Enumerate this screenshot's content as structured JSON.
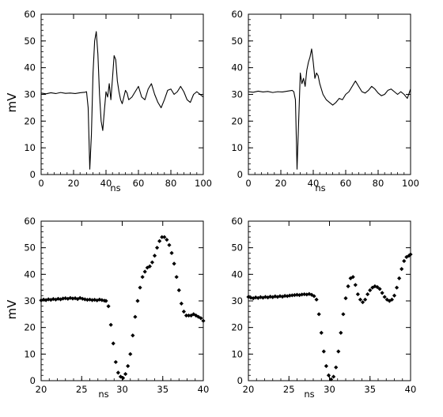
{
  "chart_data": [
    {
      "type": "line",
      "xlabel": "ns",
      "ylabel": "mV",
      "xlim": [
        0,
        100
      ],
      "ylim": [
        0,
        60
      ],
      "xticks": [
        "0",
        "20",
        "40",
        "60",
        "80",
        "100"
      ],
      "yticks": [
        "0",
        "10",
        "20",
        "30",
        "40",
        "50",
        "60"
      ],
      "grid": false,
      "series": [
        {
          "x": [
            0,
            3,
            6,
            9,
            12,
            15,
            18,
            21,
            24,
            27,
            28,
            29,
            30,
            31,
            32,
            33,
            34,
            35,
            36,
            37,
            38,
            39,
            40,
            41,
            42,
            43,
            44,
            45,
            46,
            47,
            48,
            49,
            50,
            51,
            52,
            53,
            54,
            56,
            58,
            60,
            62,
            64,
            66,
            68,
            70,
            72,
            74,
            76,
            78,
            80,
            82,
            84,
            86,
            88,
            90,
            92,
            94,
            96,
            98,
            100
          ],
          "y": [
            30.5,
            30.2,
            30.6,
            30.3,
            30.7,
            30.4,
            30.5,
            30.3,
            30.6,
            30.8,
            31.0,
            25.0,
            2.0,
            15.0,
            38.0,
            50.0,
            53.5,
            45.0,
            30.0,
            20.0,
            16.5,
            24.0,
            31.0,
            29.0,
            34.0,
            28.0,
            36.0,
            44.5,
            43.0,
            35.0,
            31.0,
            28.0,
            26.5,
            29.0,
            31.5,
            30.5,
            28.0,
            29.0,
            31.0,
            33.0,
            29.0,
            28.0,
            32.0,
            34.0,
            30.0,
            27.0,
            25.0,
            28.0,
            31.5,
            32.0,
            30.0,
            31.0,
            33.0,
            31.0,
            28.0,
            27.0,
            30.0,
            31.0,
            30.0,
            29.0
          ]
        }
      ]
    },
    {
      "type": "line",
      "xlabel": "ns",
      "ylabel": "",
      "xlim": [
        0,
        100
      ],
      "ylim": [
        0,
        60
      ],
      "xticks": [
        "0",
        "20",
        "40",
        "60",
        "80",
        "100"
      ],
      "yticks": [
        "0",
        "10",
        "20",
        "30",
        "40",
        "50",
        "60"
      ],
      "grid": false,
      "series": [
        {
          "x": [
            0,
            3,
            6,
            9,
            12,
            15,
            18,
            21,
            24,
            27,
            28,
            29,
            30,
            31,
            32,
            33,
            34,
            35,
            36,
            37,
            38,
            39,
            40,
            41,
            42,
            43,
            44,
            45,
            46,
            47,
            48,
            50,
            52,
            54,
            56,
            58,
            60,
            62,
            64,
            66,
            68,
            70,
            72,
            74,
            76,
            78,
            80,
            82,
            84,
            86,
            88,
            90,
            92,
            94,
            96,
            98,
            100
          ],
          "y": [
            31.0,
            30.8,
            31.2,
            30.9,
            31.1,
            30.7,
            31.0,
            30.9,
            31.2,
            31.5,
            31.0,
            28.0,
            2.0,
            20.0,
            38.0,
            34.0,
            36.0,
            33.0,
            39.0,
            42.0,
            44.0,
            47.0,
            42.0,
            36.0,
            38.0,
            37.0,
            34.0,
            32.0,
            30.0,
            29.0,
            28.0,
            27.0,
            26.0,
            27.0,
            28.5,
            28.0,
            30.0,
            31.0,
            33.0,
            35.0,
            33.0,
            31.0,
            30.5,
            31.5,
            33.0,
            32.0,
            30.5,
            29.5,
            30.0,
            31.5,
            32.0,
            31.0,
            30.0,
            31.0,
            30.0,
            28.5,
            32.0
          ]
        }
      ]
    },
    {
      "type": "scatter",
      "xlabel": "ns",
      "ylabel": "mV",
      "xlim": [
        20,
        40
      ],
      "ylim": [
        0,
        60
      ],
      "xticks": [
        "20",
        "25",
        "30",
        "35",
        "40"
      ],
      "yticks": [
        "0",
        "10",
        "20",
        "30",
        "40",
        "50",
        "60"
      ],
      "grid": false,
      "series": [
        {
          "x": [
            20.0,
            20.3,
            20.6,
            20.9,
            21.2,
            21.5,
            21.8,
            22.1,
            22.4,
            22.7,
            23.0,
            23.3,
            23.6,
            23.9,
            24.2,
            24.5,
            24.8,
            25.1,
            25.4,
            25.7,
            26.0,
            26.3,
            26.6,
            26.9,
            27.2,
            27.5,
            27.8,
            28.0,
            28.3,
            28.6,
            28.9,
            29.2,
            29.5,
            29.8,
            30.1,
            30.4,
            30.7,
            31.0,
            31.3,
            31.6,
            31.9,
            32.2,
            32.5,
            32.8,
            33.1,
            33.4,
            33.7,
            34.0,
            34.3,
            34.6,
            34.9,
            35.2,
            35.5,
            35.8,
            36.1,
            36.4,
            36.7,
            37.0,
            37.3,
            37.6,
            37.9,
            38.2,
            38.5,
            38.8,
            39.1,
            39.4,
            39.7,
            40.0
          ],
          "y": [
            30.2,
            30.5,
            30.3,
            30.6,
            30.4,
            30.7,
            30.5,
            30.8,
            30.6,
            30.9,
            31.0,
            30.8,
            31.1,
            30.9,
            31.0,
            30.7,
            31.1,
            30.8,
            30.6,
            30.4,
            30.5,
            30.3,
            30.4,
            30.2,
            30.5,
            30.3,
            30.1,
            30.0,
            28.0,
            21.0,
            14.0,
            7.0,
            3.0,
            1.5,
            1.0,
            2.5,
            5.5,
            10.0,
            17.0,
            24.0,
            30.0,
            35.0,
            39.0,
            41.0,
            42.5,
            43.0,
            44.5,
            47.0,
            50.0,
            52.5,
            54.0,
            54.0,
            53.0,
            51.0,
            48.0,
            44.0,
            39.0,
            34.0,
            29.0,
            26.0,
            24.5,
            24.5,
            24.5,
            25.0,
            24.5,
            24.0,
            23.5,
            22.5
          ]
        }
      ]
    },
    {
      "type": "scatter",
      "xlabel": "ns",
      "ylabel": "",
      "xlim": [
        20,
        40
      ],
      "ylim": [
        0,
        60
      ],
      "xticks": [
        "20",
        "25",
        "30",
        "35",
        "40"
      ],
      "yticks": [
        "0",
        "10",
        "20",
        "30",
        "40",
        "50",
        "60"
      ],
      "grid": false,
      "series": [
        {
          "x": [
            20.0,
            20.3,
            20.6,
            20.9,
            21.2,
            21.5,
            21.8,
            22.1,
            22.4,
            22.7,
            23.0,
            23.3,
            23.6,
            23.9,
            24.2,
            24.5,
            24.8,
            25.1,
            25.4,
            25.7,
            26.0,
            26.3,
            26.6,
            26.9,
            27.2,
            27.5,
            27.8,
            28.1,
            28.4,
            28.7,
            29.0,
            29.3,
            29.6,
            29.9,
            30.2,
            30.5,
            30.8,
            31.1,
            31.4,
            31.7,
            32.0,
            32.3,
            32.6,
            32.9,
            33.2,
            33.5,
            33.8,
            34.1,
            34.4,
            34.7,
            35.0,
            35.3,
            35.6,
            35.9,
            36.2,
            36.5,
            36.8,
            37.1,
            37.4,
            37.7,
            38.0,
            38.3,
            38.6,
            38.9,
            39.2,
            39.5,
            39.8,
            40.0
          ],
          "y": [
            31.5,
            31.2,
            31.0,
            31.3,
            31.1,
            31.4,
            31.2,
            31.5,
            31.3,
            31.6,
            31.4,
            31.7,
            31.5,
            31.8,
            31.6,
            31.9,
            31.8,
            32.0,
            32.1,
            32.2,
            32.3,
            32.2,
            32.4,
            32.5,
            32.4,
            32.6,
            32.3,
            31.8,
            30.5,
            25.0,
            18.0,
            11.0,
            5.5,
            2.0,
            0.5,
            1.5,
            5.0,
            11.0,
            18.0,
            25.0,
            31.0,
            35.5,
            38.5,
            39.0,
            36.0,
            32.5,
            30.5,
            29.5,
            30.5,
            32.5,
            34.0,
            35.0,
            35.5,
            35.2,
            34.5,
            33.0,
            31.5,
            30.5,
            30.0,
            30.5,
            32.0,
            35.0,
            38.5,
            42.0,
            45.0,
            46.5,
            47.0,
            47.5
          ]
        }
      ]
    }
  ]
}
